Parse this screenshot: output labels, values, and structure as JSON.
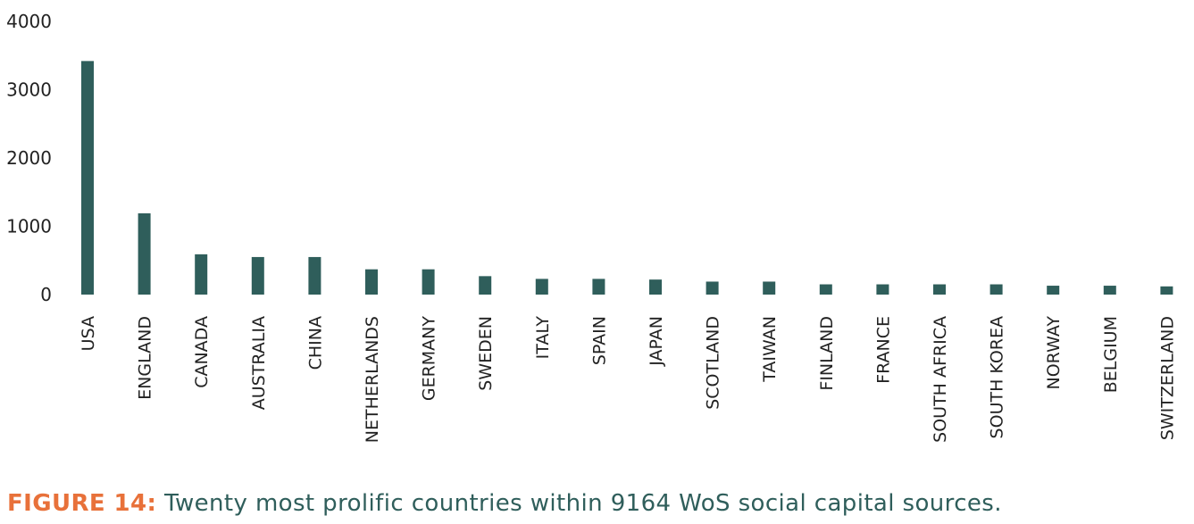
{
  "caption": {
    "label": "FIGURE 14:",
    "text": " Twenty most prolific countries within 9164 WoS social capital sources.",
    "label_color": "#e8713a",
    "text_color": "#2f5e5b"
  },
  "colors": {
    "bar": "#2f5e5b"
  },
  "chart_data": {
    "type": "bar",
    "title": "",
    "xlabel": "",
    "ylabel": "",
    "ylim": [
      0,
      4000
    ],
    "yticks": [
      0,
      1000,
      2000,
      3000,
      4000
    ],
    "grid": false,
    "categories": [
      "USA",
      "ENGLAND",
      "CANADA",
      "AUSTRALIA",
      "CHINA",
      "NETHERLANDS",
      "GERMANY",
      "SWEDEN",
      "ITALY",
      "SPAIN",
      "JAPAN",
      "SCOTLAND",
      "TAIWAN",
      "FINLAND",
      "FRANCE",
      "SOUTH AFRICA",
      "SOUTH KOREA",
      "NORWAY",
      "BELGIUM",
      "SWITZERLAND"
    ],
    "values": [
      3420,
      1190,
      590,
      550,
      550,
      370,
      370,
      270,
      230,
      230,
      220,
      190,
      190,
      150,
      150,
      150,
      150,
      130,
      130,
      120
    ]
  }
}
